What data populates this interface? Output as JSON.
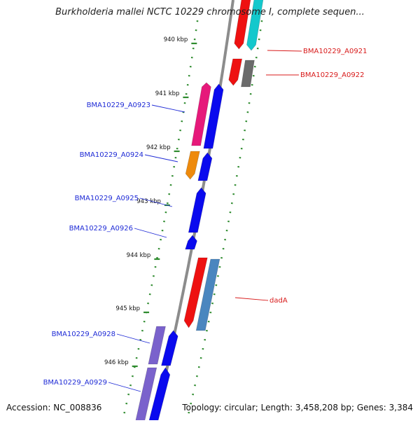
{
  "title": "Burkholderia mallei NCTC 10229 chromosome I, complete sequen...",
  "footer": {
    "accession": "Accession: NC_008836",
    "topology": "Topology: circular; Length: 3,458,208 bp; Genes: 3,384"
  },
  "colors": {
    "backbone": "#8c8c8c",
    "tick": "#2e8b2e",
    "label_left": "#1f2bd6",
    "label_right": "#d81b1b"
  },
  "scale_labels": [
    "940 kbp",
    "941 kbp",
    "942 kbp",
    "943 kbp",
    "944 kbp",
    "945 kbp",
    "946 kbp"
  ],
  "genes": [
    {
      "label": "BMA10229_A0921",
      "side": "right",
      "color": "#ee1111",
      "color2": "#14c8cc"
    },
    {
      "label": "BMA10229_A0922",
      "side": "right",
      "color": "#ee1111",
      "color2": "#6b6b6b"
    },
    {
      "label": "BMA10229_A0923",
      "side": "left",
      "color": "#e6197a",
      "color2": "#0a0aee"
    },
    {
      "label": "BMA10229_A0924",
      "side": "left",
      "color": "#ee8a0c",
      "color2": "#0a0aee"
    },
    {
      "label": "BMA10229_A0925",
      "side": "left",
      "color": "",
      "color2": "#0a0aee"
    },
    {
      "label": "BMA10229_A0926",
      "side": "left",
      "color": "",
      "color2": "#0a0aee"
    },
    {
      "label": "dadA",
      "side": "right",
      "color": "#ee1111",
      "color2": "#4a86bf"
    },
    {
      "label": "BMA10229_A0928",
      "side": "left",
      "color": "#7a62cc",
      "color2": "#0a0aee"
    },
    {
      "label": "BMA10229_A0929",
      "side": "left",
      "color": "#7a62cc",
      "color2": "#0a0aee"
    }
  ]
}
